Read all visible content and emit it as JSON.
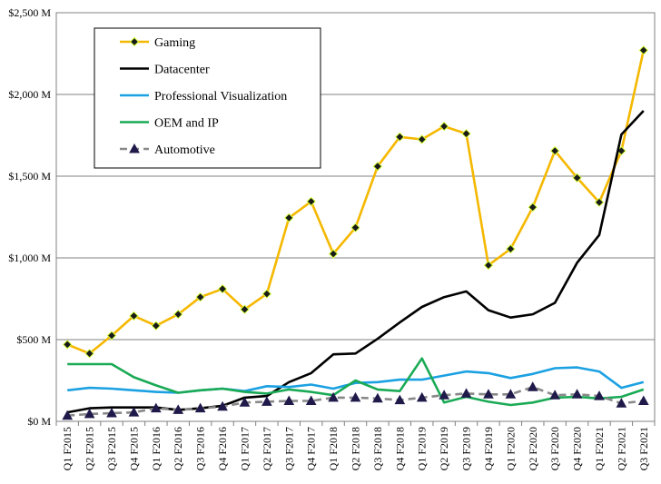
{
  "chart_data": {
    "type": "line",
    "title": "",
    "xlabel": "",
    "ylabel": "",
    "ylim": [
      0,
      2500
    ],
    "yticks": [
      {
        "value": 0,
        "label": "$0 M"
      },
      {
        "value": 500,
        "label": "$500 M"
      },
      {
        "value": 1000,
        "label": "$1,000 M"
      },
      {
        "value": 1500,
        "label": "$1,500 M"
      },
      {
        "value": 2000,
        "label": "$2,000 M"
      },
      {
        "value": 2500,
        "label": "$2,500 M"
      }
    ],
    "grid": true,
    "legend_position": "top-left",
    "categories": [
      "Q1 F2015",
      "Q2 F2015",
      "Q3 F2015",
      "Q4 F2015",
      "Q1 F2016",
      "Q2 F2016",
      "Q3 F2016",
      "Q4 F2016",
      "Q1 F2017",
      "Q2 F2017",
      "Q3 F2017",
      "Q4 F2017",
      "Q1 F2018",
      "Q2 F2018",
      "Q3 F2018",
      "Q4 F2018",
      "Q1 F2019",
      "Q2 F2019",
      "Q3 F2019",
      "Q4 F2019",
      "Q1 F2020",
      "Q2 F2020",
      "Q3 F2020",
      "Q4 F2020",
      "Q1 F2021",
      "Q2 F2021",
      "Q3 F2021"
    ],
    "series": [
      {
        "name": "Gaming",
        "color": "#f5b800",
        "style": "solid",
        "marker": "diamond",
        "values": [
          470,
          415,
          525,
          645,
          585,
          655,
          760,
          810,
          685,
          780,
          1245,
          1345,
          1025,
          1185,
          1560,
          1740,
          1725,
          1805,
          1760,
          955,
          1055,
          1310,
          1655,
          1490,
          1340,
          1655,
          2270
        ]
      },
      {
        "name": "Datacenter",
        "color": "#000000",
        "style": "solid",
        "marker": "none",
        "values": [
          55,
          80,
          85,
          85,
          85,
          70,
          80,
          95,
          145,
          155,
          240,
          295,
          410,
          415,
          505,
          605,
          700,
          760,
          795,
          680,
          635,
          655,
          725,
          970,
          1140,
          1755,
          1900
        ]
      },
      {
        "name": "Professional Visualization",
        "color": "#1ba1e2",
        "style": "solid",
        "marker": "none",
        "values": [
          190,
          205,
          200,
          190,
          180,
          175,
          190,
          200,
          185,
          215,
          210,
          225,
          200,
          235,
          240,
          255,
          255,
          280,
          305,
          295,
          265,
          290,
          325,
          330,
          305,
          205,
          240
        ]
      },
      {
        "name": "OEM and IP",
        "color": "#1aaa55",
        "style": "solid",
        "marker": "none",
        "values": [
          350,
          350,
          350,
          270,
          220,
          175,
          190,
          200,
          180,
          170,
          195,
          180,
          160,
          250,
          195,
          185,
          385,
          115,
          150,
          120,
          100,
          115,
          145,
          150,
          140,
          150,
          195
        ]
      },
      {
        "name": "Automotive",
        "color": "#888888",
        "style": "dashed",
        "marker": "triangle",
        "values": [
          35,
          45,
          50,
          55,
          80,
          70,
          80,
          90,
          115,
          120,
          125,
          125,
          145,
          145,
          140,
          130,
          145,
          160,
          170,
          165,
          165,
          210,
          160,
          165,
          155,
          110,
          125
        ]
      }
    ]
  }
}
